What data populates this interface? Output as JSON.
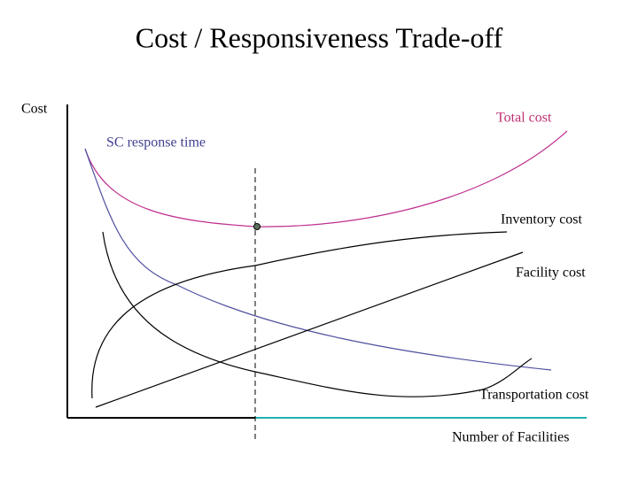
{
  "title": "Cost / Responsiveness Trade-off",
  "axes": {
    "y_label": "Cost",
    "x_label": "Number of Facilities"
  },
  "curves": {
    "total_cost": "Total cost",
    "sc_response_time": "SC response time",
    "inventory_cost": "Inventory cost",
    "facility_cost": "Facility cost",
    "transportation_cost": "Transportation cost"
  }
}
